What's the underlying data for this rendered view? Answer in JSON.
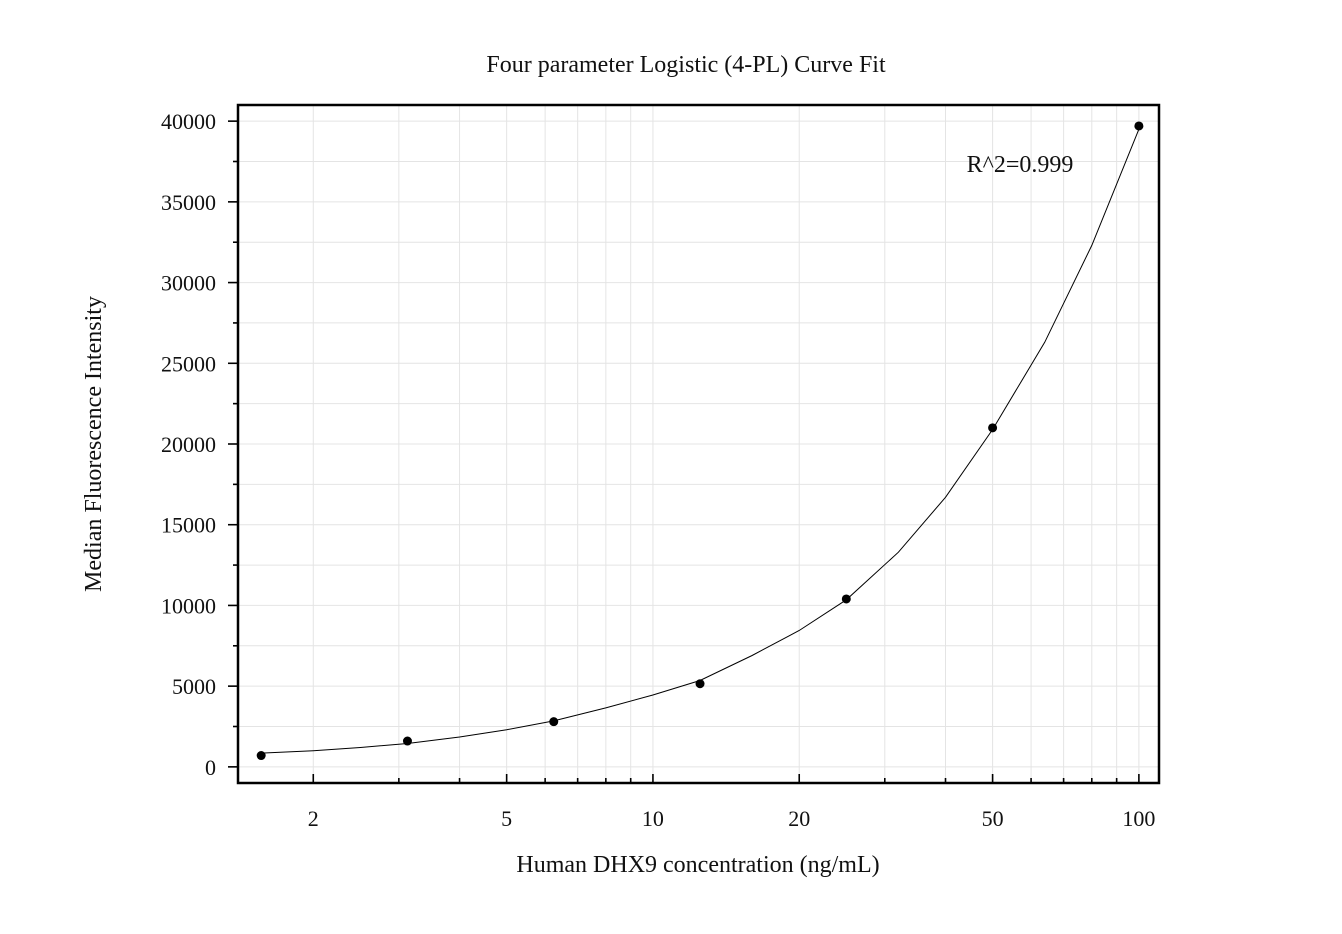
{
  "chart_data": {
    "type": "scatter",
    "title": "Four parameter Logistic (4-PL) Curve Fit",
    "xlabel": "Human DHX9 concentration (ng/mL)",
    "ylabel": "Median Fluorescence Intensity",
    "x_scale": "log",
    "xlim": [
      1.4,
      110
    ],
    "ylim": [
      -1000,
      41000
    ],
    "x_ticks": [
      2,
      5,
      10,
      20,
      50,
      100
    ],
    "x_tick_labels": [
      "2",
      "5",
      "10",
      "20",
      "50",
      "100"
    ],
    "y_ticks": [
      0,
      5000,
      10000,
      15000,
      20000,
      25000,
      30000,
      35000,
      40000
    ],
    "y_tick_labels": [
      "0",
      "5000",
      "10000",
      "15000",
      "20000",
      "25000",
      "30000",
      "35000",
      "40000"
    ],
    "grid": true,
    "series": [
      {
        "x": [
          1.5625,
          3.125,
          6.25,
          12.5,
          25,
          50,
          100
        ],
        "y": [
          700,
          1600,
          2800,
          5150,
          10400,
          21000,
          39700
        ]
      }
    ],
    "fit_curve": {
      "x": [
        1.5625,
        2,
        2.5,
        3.125,
        4,
        5,
        6.25,
        8,
        10,
        12.5,
        16,
        20,
        25,
        32,
        40,
        50,
        64,
        80,
        100
      ],
      "y": [
        850,
        1000,
        1200,
        1450,
        1850,
        2300,
        2850,
        3650,
        4450,
        5350,
        6900,
        8450,
        10350,
        13300,
        16700,
        20900,
        26300,
        32300,
        39500
      ]
    },
    "annotation": "R^2=0.999"
  }
}
